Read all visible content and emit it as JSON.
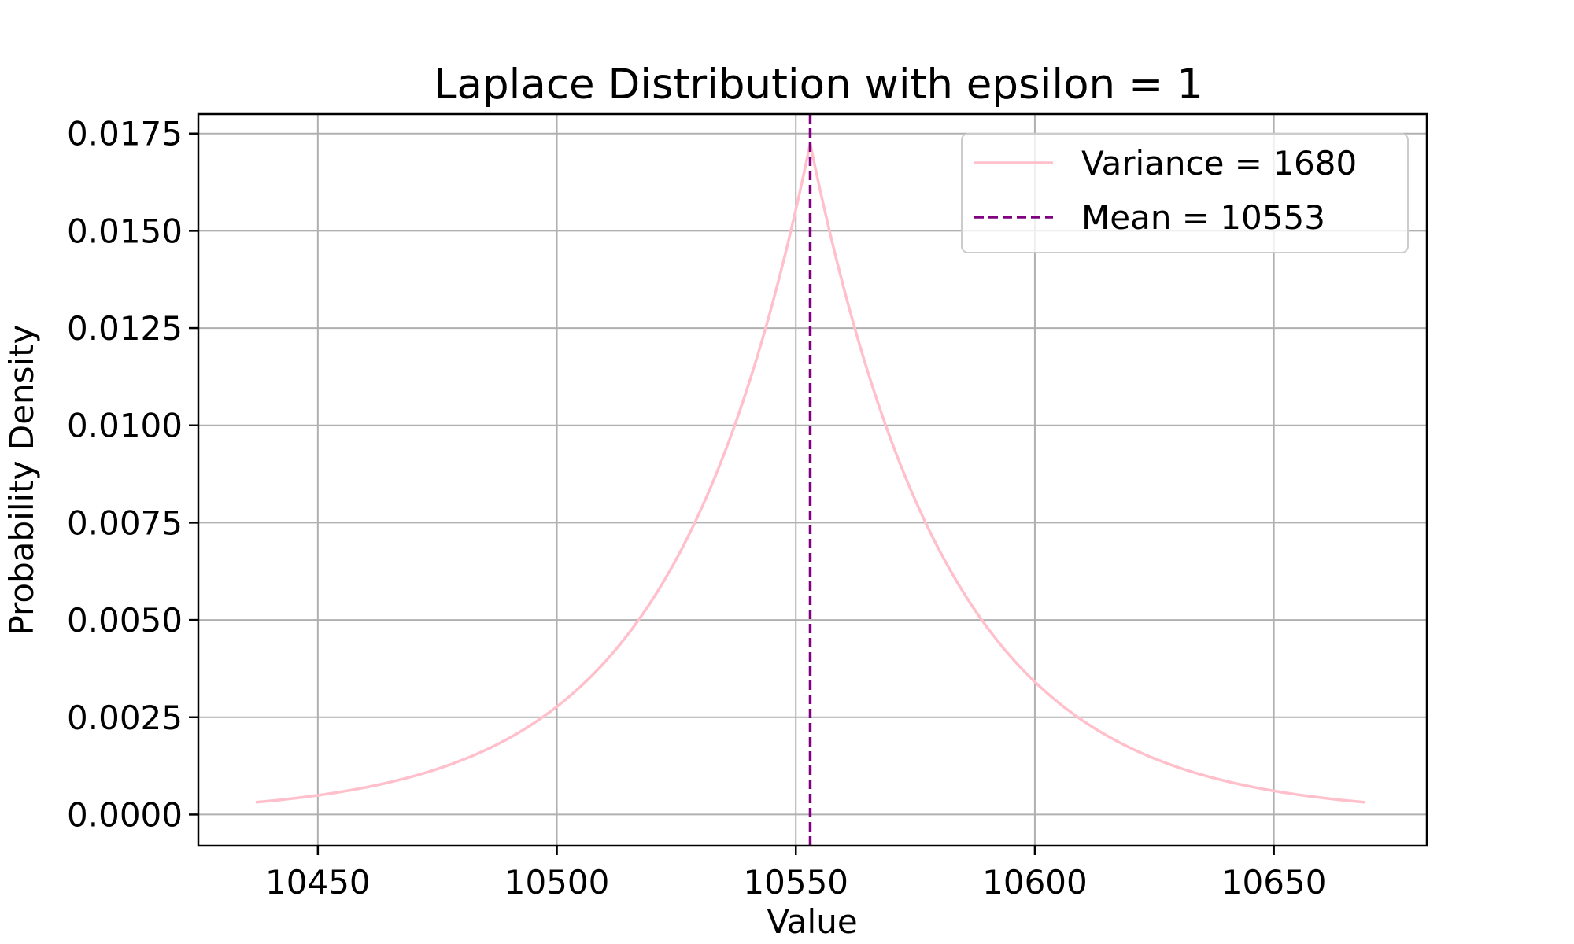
{
  "chart_data": {
    "type": "line",
    "title": "Laplace Distribution with epsilon = 1",
    "xlabel": "Value",
    "ylabel": "Probability Density",
    "xlim": [
      10425,
      10682
    ],
    "ylim": [
      -0.0008,
      0.018
    ],
    "x_ticks": [
      10450,
      10500,
      10550,
      10600,
      10650
    ],
    "y_ticks": [
      0.0,
      0.0025,
      0.005,
      0.0075,
      0.01,
      0.0125,
      0.015,
      0.0175
    ],
    "x_tick_labels": [
      "10450",
      "10500",
      "10550",
      "10600",
      "10650"
    ],
    "y_tick_labels": [
      "0.0000",
      "0.0025",
      "0.0050",
      "0.0075",
      "0.0100",
      "0.0125",
      "0.0150",
      "0.0175"
    ],
    "grid": true,
    "legend_position": "top-right",
    "series": [
      {
        "name": "Variance = 1680",
        "kind": "laplace-pdf",
        "color": "#ffc0cb",
        "mu": 10553,
        "b": 29,
        "x_range": [
          10437,
          10669
        ]
      },
      {
        "name": "Mean = 10553",
        "kind": "vertical-line",
        "color": "#800080",
        "dashed": true,
        "x": 10553
      }
    ]
  }
}
